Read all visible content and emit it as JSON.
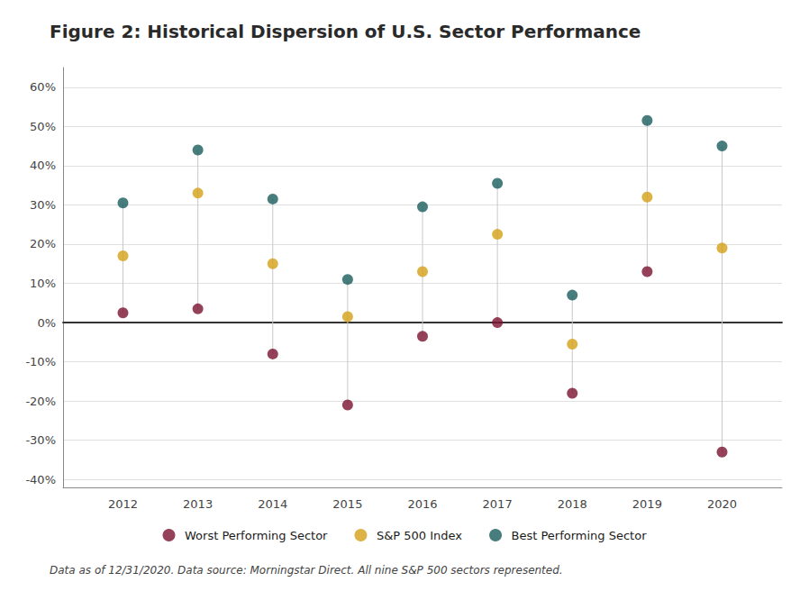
{
  "chart_data": {
    "type": "scatter",
    "title": "Figure 2: Historical Dispersion of U.S. Sector Performance",
    "subtitle": "Data as of 12/31/2020. Data source: Morningstar Direct. All nine S&P 500 sectors represented.",
    "x": [
      2012,
      2013,
      2014,
      2015,
      2016,
      2017,
      2018,
      2019,
      2020
    ],
    "series": [
      {
        "name": "Worst Performing Sector",
        "color": "#7b1230",
        "values": [
          2.5,
          3.5,
          -8.0,
          -21.0,
          -3.5,
          0.0,
          -18.0,
          13.0,
          -33.0
        ]
      },
      {
        "name": "S&P 500 Index",
        "color": "#d4a017",
        "values": [
          17.0,
          33.0,
          15.0,
          1.5,
          13.0,
          22.5,
          -5.5,
          32.0,
          19.0
        ]
      },
      {
        "name": "Best Performing Sector",
        "color": "#1a5c5e",
        "values": [
          30.5,
          44.0,
          31.5,
          11.0,
          29.5,
          35.5,
          7.0,
          51.5,
          45.0
        ]
      }
    ],
    "xlim": [
      2011.2,
      2020.8
    ],
    "xticks": [
      2012,
      2013,
      2014,
      2015,
      2016,
      2017,
      2018,
      2019,
      2020
    ],
    "ylim": [
      -42,
      65
    ],
    "yticks": [
      {
        "value": -40,
        "label": "-40%"
      },
      {
        "value": -30,
        "label": "-30%"
      },
      {
        "value": -20,
        "label": "-20%"
      },
      {
        "value": -10,
        "label": "-10%"
      },
      {
        "value": 0,
        "label": "0%"
      },
      {
        "value": 10,
        "label": "10%"
      },
      {
        "value": 20,
        "label": "20%"
      },
      {
        "value": 30,
        "label": "30%"
      },
      {
        "value": 40,
        "label": "40%"
      },
      {
        "value": 50,
        "label": "50%"
      },
      {
        "value": 60,
        "label": "60%"
      }
    ],
    "grid": true,
    "legend": "bottom"
  }
}
